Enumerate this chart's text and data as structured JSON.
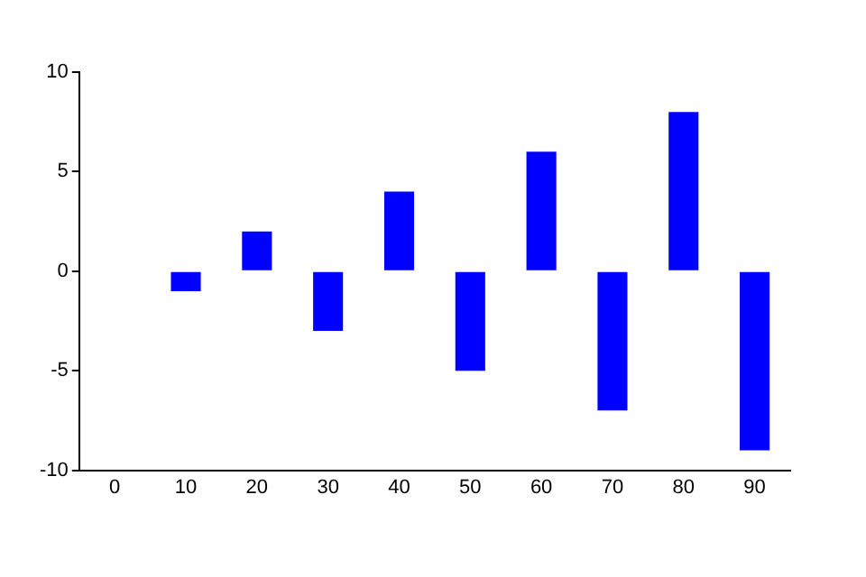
{
  "chart_data": {
    "type": "bar",
    "categories": [
      "0",
      "10",
      "20",
      "30",
      "40",
      "50",
      "60",
      "70",
      "80",
      "90"
    ],
    "values": [
      0,
      -1,
      2,
      -3,
      4,
      -5,
      6,
      -7,
      8,
      -9
    ],
    "color": "#0000ff",
    "ylim": [
      -10,
      10
    ],
    "yticks": [
      -10,
      -5,
      0,
      5,
      10
    ],
    "grid": false,
    "legend": false
  }
}
